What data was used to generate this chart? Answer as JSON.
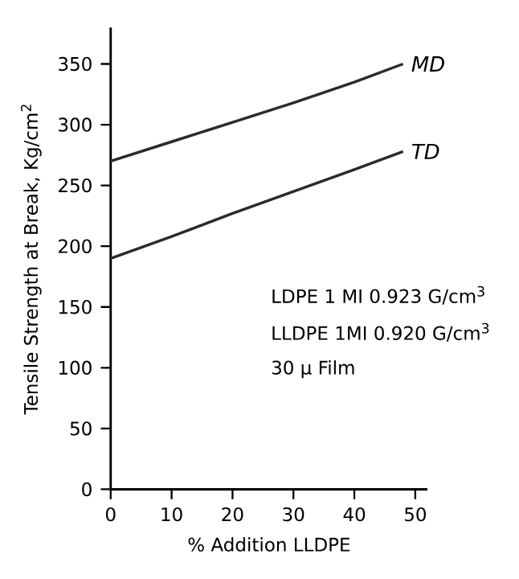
{
  "chart_data": {
    "type": "line",
    "xlabel": "% Addition LLDPE",
    "ylabel": "Tensile Strength at Break, Kg/cm$^{2}$",
    "xlim": [
      0,
      52
    ],
    "ylim": [
      0,
      380
    ],
    "xticks": [
      0,
      10,
      20,
      30,
      40,
      50
    ],
    "yticks": [
      0,
      50,
      100,
      150,
      200,
      250,
      300,
      350
    ],
    "grid": false,
    "marker": "none",
    "line_style": "solid",
    "series": [
      {
        "name": "MD",
        "color": "#2b2b2b",
        "x": [
          0,
          10,
          20,
          30,
          40,
          48
        ],
        "values": [
          270,
          286,
          302,
          318,
          335,
          350
        ]
      },
      {
        "name": "TD",
        "color": "#2b2b2b",
        "x": [
          0,
          10,
          20,
          30,
          40,
          48
        ],
        "values": [
          190,
          208,
          227,
          245,
          263,
          278
        ]
      }
    ],
    "annotations": [
      "LDPE 1 MI 0.923 G/cm$^{3}$",
      "LLDPE 1MI 0.920 G/cm$^{3}$",
      "30 μ Film"
    ]
  }
}
